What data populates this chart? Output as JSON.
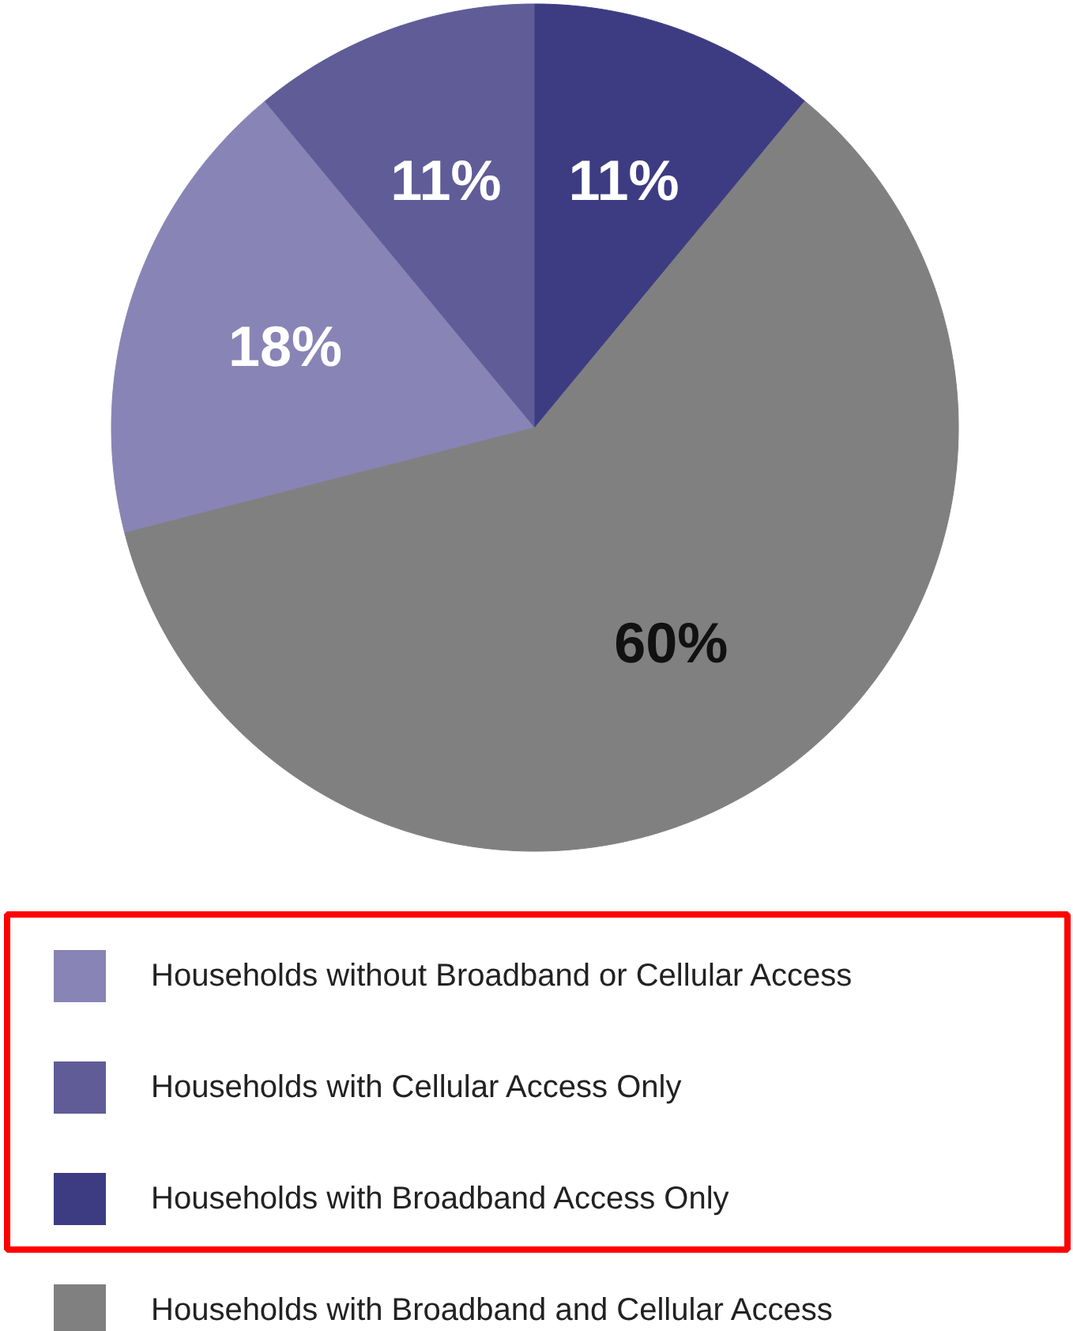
{
  "chart_data": {
    "type": "pie",
    "categories": [
      "Households without Broadband or Cellular Access",
      "Households with Cellular Access Only",
      "Households with Broadband Access Only",
      "Households with Broadband and Cellular Access"
    ],
    "values": [
      18,
      11,
      11,
      60
    ],
    "colors": [
      "#8884b6",
      "#5f5c98",
      "#3d3c82",
      "#808080"
    ],
    "value_labels": [
      "18%",
      "11%",
      "11%",
      "60%"
    ],
    "legend": "bottom"
  }
}
